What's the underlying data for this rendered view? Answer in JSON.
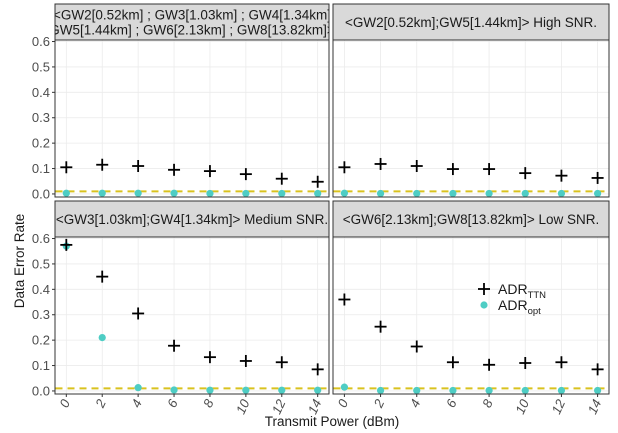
{
  "chart_data": {
    "type": "scatter",
    "xlabel": "Transmit Power (dBm)",
    "ylabel": "Data Error Rate",
    "x": [
      0,
      2,
      4,
      6,
      8,
      10,
      12,
      14
    ],
    "x_ticks": [
      "0",
      "2",
      "4",
      "6",
      "8",
      "10",
      "12",
      "14"
    ],
    "ylim": [
      0,
      0.6
    ],
    "y_ticks": [
      "0.0",
      "0.1",
      "0.2",
      "0.3",
      "0.4",
      "0.5",
      "0.6"
    ],
    "reference_line": {
      "y": 0.01,
      "style": "dashed",
      "color": "#d9c21f"
    },
    "grid": true,
    "legend": {
      "placement": "inside bottom-right panel",
      "entries": [
        {
          "base": "ADR",
          "sub": "TTN",
          "marker": "plus",
          "color": "#000000"
        },
        {
          "base": "ADR",
          "sub": "opt",
          "marker": "circle",
          "color": "#4ecdc4"
        }
      ]
    },
    "panels": [
      {
        "title": "<GW2[0.52km] ; GW3[1.03km] ; GW4[1.34km] ; GW5[1.44km] ; GW6[2.13km] ; GW8[13.82km]>",
        "strip_lines": [
          "<GW2[0.52km] ; GW3[1.03km] ; GW4[1.34km]",
          "GW5[1.44km] ; GW6[2.13km] ; GW8[13.82km]>"
        ],
        "series": [
          {
            "name": "ADR_TTN",
            "values": [
              0.105,
              0.115,
              0.11,
              0.095,
              0.09,
              0.078,
              0.06,
              0.048
            ]
          },
          {
            "name": "ADR_opt",
            "values": [
              0.003,
              0.003,
              0.003,
              0.003,
              0.002,
              0.002,
              0.002,
              0.002
            ]
          }
        ]
      },
      {
        "title": "<GW2[0.52km];GW5[1.44km]> High SNR.",
        "strip_lines": [
          "<GW2[0.52km];GW5[1.44km]> High SNR."
        ],
        "series": [
          {
            "name": "ADR_TTN",
            "values": [
              0.105,
              0.118,
              0.11,
              0.098,
              0.098,
              0.082,
              0.072,
              0.063
            ]
          },
          {
            "name": "ADR_opt",
            "values": [
              0.003,
              0.002,
              0.002,
              0.002,
              0.002,
              0.002,
              0.002,
              0.002
            ]
          }
        ]
      },
      {
        "title": "<GW3[1.03km];GW4[1.34km]> Medium SNR.",
        "strip_lines": [
          "<GW3[1.03km];GW4[1.34km]> Medium SNR."
        ],
        "series": [
          {
            "name": "ADR_TTN",
            "values": [
              0.575,
              0.45,
              0.305,
              0.178,
              0.133,
              0.118,
              0.113,
              0.085
            ]
          },
          {
            "name": "ADR_opt",
            "values": [
              0.57,
              0.21,
              0.013,
              0.004,
              0.003,
              0.003,
              0.003,
              0.003
            ]
          }
        ]
      },
      {
        "title": "<GW6[2.13km];GW8[13.82km]> Low SNR.",
        "strip_lines": [
          "<GW6[2.13km];GW8[13.82km]> Low SNR."
        ],
        "series": [
          {
            "name": "ADR_TTN",
            "values": [
              0.36,
              0.253,
              0.175,
              0.113,
              0.103,
              0.11,
              0.113,
              0.085
            ]
          },
          {
            "name": "ADR_opt",
            "values": [
              0.015,
              0.002,
              0.002,
              0.002,
              0.002,
              0.002,
              0.002,
              0.002
            ]
          }
        ]
      }
    ]
  }
}
